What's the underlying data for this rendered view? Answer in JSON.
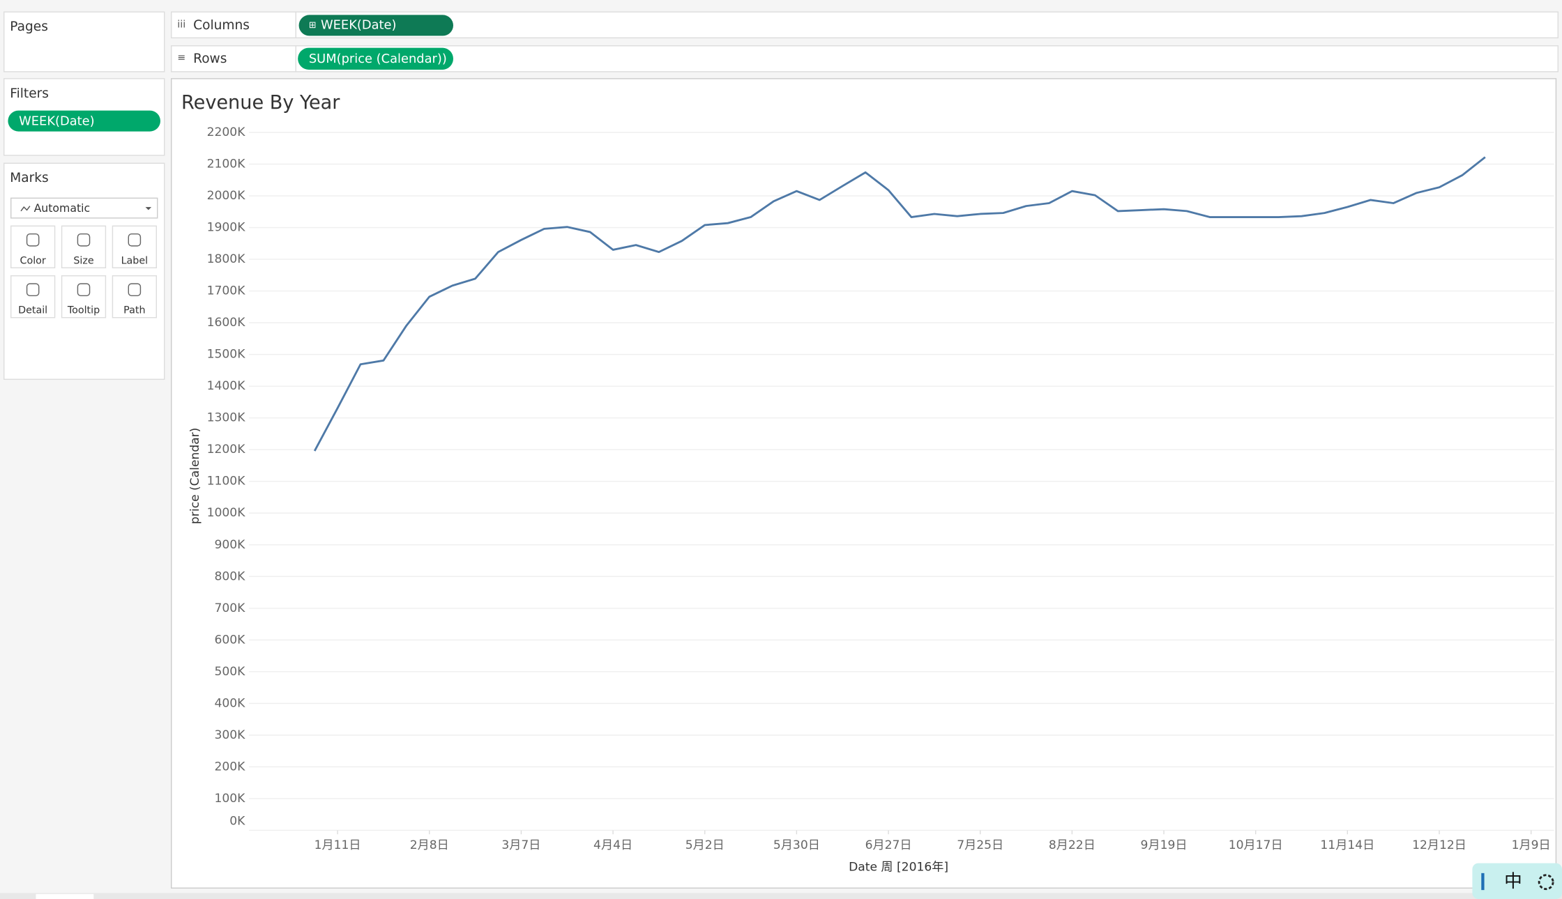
{
  "sidebar": {
    "pages": "Pages",
    "filters": "Filters",
    "filter_pill": "WEEK(Date)",
    "marks": "Marks",
    "mark_type": "Automatic",
    "mark_buttons": [
      "Color",
      "Size",
      "Label",
      "Detail",
      "Tooltip",
      "Path"
    ]
  },
  "shelves": {
    "columns_label": "Columns",
    "columns_pill": "WEEK(Date)",
    "rows_label": "Rows",
    "rows_pill": "SUM(price (Calendar))"
  },
  "ime": "中",
  "chart_data": {
    "type": "line",
    "title": "Revenue By Year",
    "x_label": "Date 周 [2016年]",
    "y_label": "price (Calendar)",
    "color": "#4e79a7",
    "grid": true,
    "x": [
      "2016-01-04",
      "2016-01-11",
      "2016-01-18",
      "2016-01-25",
      "2016-02-01",
      "2016-02-08",
      "2016-02-15",
      "2016-02-22",
      "2016-02-29",
      "2016-03-07",
      "2016-03-14",
      "2016-03-21",
      "2016-03-28",
      "2016-04-04",
      "2016-04-11",
      "2016-04-18",
      "2016-04-25",
      "2016-05-02",
      "2016-05-09",
      "2016-05-16",
      "2016-05-23",
      "2016-05-30",
      "2016-06-06",
      "2016-06-13",
      "2016-06-20",
      "2016-06-27",
      "2016-07-04",
      "2016-07-11",
      "2016-07-18",
      "2016-07-25",
      "2016-08-01",
      "2016-08-08",
      "2016-08-15",
      "2016-08-22",
      "2016-08-29",
      "2016-09-05",
      "2016-09-12",
      "2016-09-19",
      "2016-09-26",
      "2016-10-03",
      "2016-10-10",
      "2016-10-17",
      "2016-10-24",
      "2016-10-31",
      "2016-11-07",
      "2016-11-14",
      "2016-11-21",
      "2016-11-28",
      "2016-12-05",
      "2016-12-12",
      "2016-12-19",
      "2016-12-26"
    ],
    "values": [
      1196000,
      1331000,
      1469000,
      1481000,
      1591000,
      1682000,
      1717000,
      1739000,
      1823000,
      1861000,
      1896000,
      1902000,
      1886000,
      1830000,
      1845000,
      1823000,
      1858000,
      1908000,
      1914000,
      1933000,
      1983000,
      2015000,
      1987000,
      2031000,
      2074000,
      2018000,
      1933000,
      1943000,
      1936000,
      1943000,
      1946000,
      1968000,
      1977000,
      2015000,
      2002000,
      1952000,
      1955000,
      1958000,
      1952000,
      1933000,
      1933000,
      1933000,
      1933000,
      1936000,
      1946000,
      1965000,
      1987000,
      1977000,
      2009000,
      2027000,
      2065000,
      2122000
    ],
    "xlim": [
      "2015-12-15",
      "2017-01-16"
    ],
    "xticks": [
      {
        "value": "2016-01-11",
        "label": "1月11日"
      },
      {
        "value": "2016-02-08",
        "label": "2月8日"
      },
      {
        "value": "2016-03-07",
        "label": "3月7日"
      },
      {
        "value": "2016-04-04",
        "label": "4月4日"
      },
      {
        "value": "2016-05-02",
        "label": "5月2日"
      },
      {
        "value": "2016-05-30",
        "label": "5月30日"
      },
      {
        "value": "2016-06-27",
        "label": "6月27日"
      },
      {
        "value": "2016-07-25",
        "label": "7月25日"
      },
      {
        "value": "2016-08-22",
        "label": "8月22日"
      },
      {
        "value": "2016-09-19",
        "label": "9月19日"
      },
      {
        "value": "2016-10-17",
        "label": "10月17日"
      },
      {
        "value": "2016-11-14",
        "label": "11月14日"
      },
      {
        "value": "2016-12-12",
        "label": "12月12日"
      },
      {
        "value": "2017-01-09",
        "label": "1月9日"
      }
    ],
    "ylim": [
      0,
      2200000
    ],
    "yticks": [
      {
        "value": 0,
        "label": "0K"
      },
      {
        "value": 100000,
        "label": "100K"
      },
      {
        "value": 200000,
        "label": "200K"
      },
      {
        "value": 300000,
        "label": "300K"
      },
      {
        "value": 400000,
        "label": "400K"
      },
      {
        "value": 500000,
        "label": "500K"
      },
      {
        "value": 600000,
        "label": "600K"
      },
      {
        "value": 700000,
        "label": "700K"
      },
      {
        "value": 800000,
        "label": "800K"
      },
      {
        "value": 900000,
        "label": "900K"
      },
      {
        "value": 1000000,
        "label": "1000K"
      },
      {
        "value": 1100000,
        "label": "1100K"
      },
      {
        "value": 1200000,
        "label": "1200K"
      },
      {
        "value": 1300000,
        "label": "1300K"
      },
      {
        "value": 1400000,
        "label": "1400K"
      },
      {
        "value": 1500000,
        "label": "1500K"
      },
      {
        "value": 1600000,
        "label": "1600K"
      },
      {
        "value": 1700000,
        "label": "1700K"
      },
      {
        "value": 1800000,
        "label": "1800K"
      },
      {
        "value": 1900000,
        "label": "1900K"
      },
      {
        "value": 2000000,
        "label": "2000K"
      },
      {
        "value": 2100000,
        "label": "2100K"
      },
      {
        "value": 2200000,
        "label": "2200K"
      }
    ]
  }
}
